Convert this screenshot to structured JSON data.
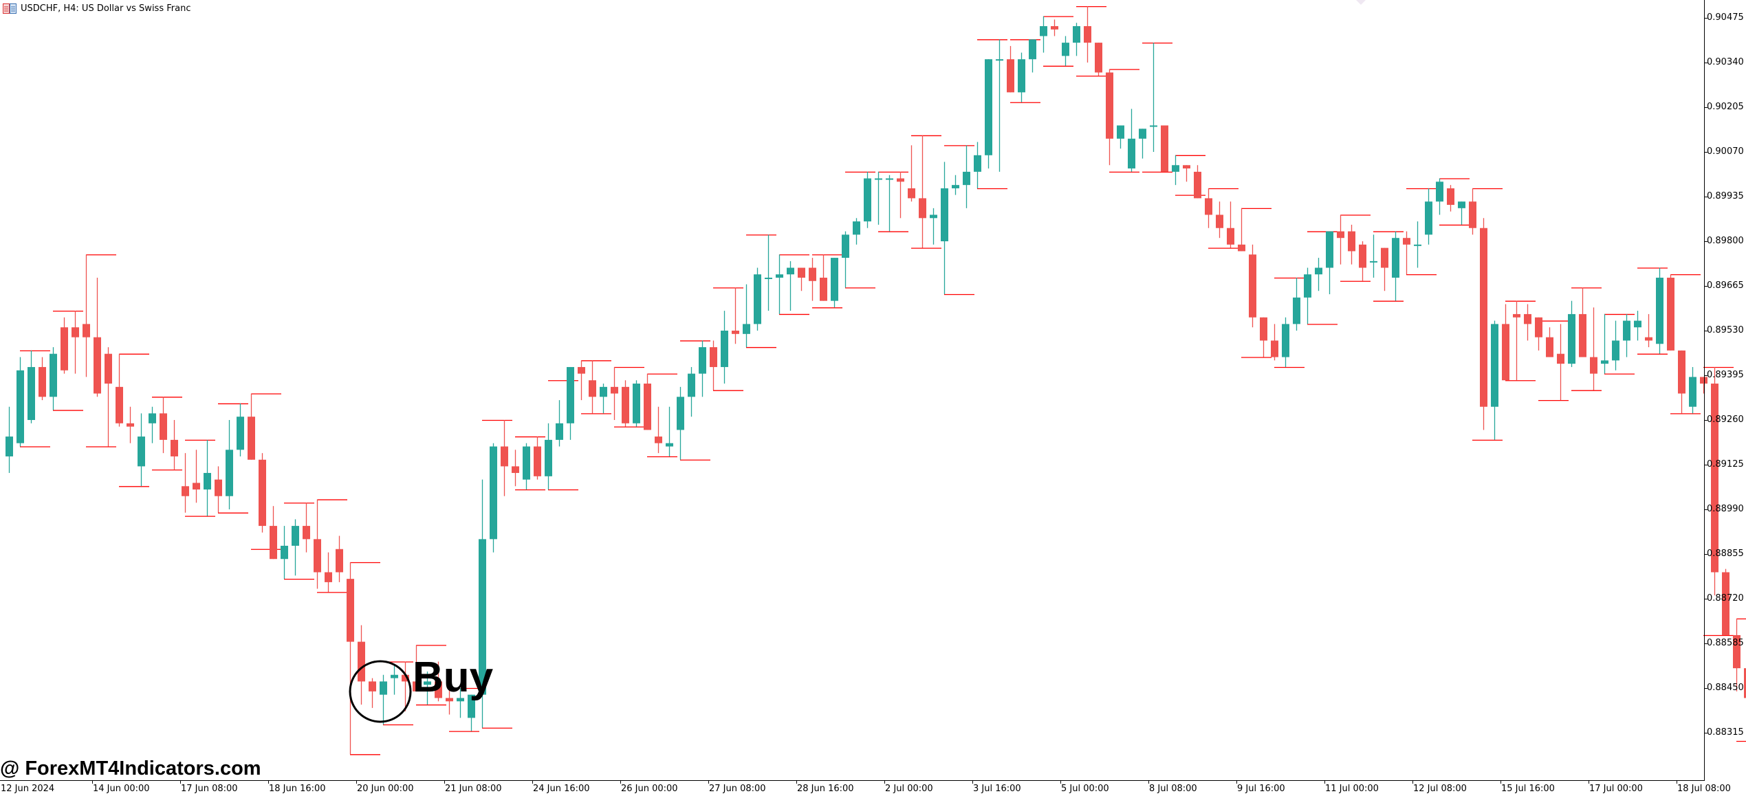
{
  "window": {
    "title": "USDCHF, H4:  US Dollar vs Swiss Franc",
    "icon": "chart-window-icon"
  },
  "annotation": {
    "label": "Buy",
    "marker": "circle"
  },
  "watermark": "@ ForexMT4Indicators.com",
  "colors": {
    "bull": "#26a69a",
    "bear": "#ef5350",
    "level_line": "#ff0000",
    "axis": "#000000",
    "background": "#ffffff"
  },
  "chart_data": {
    "type": "candlestick",
    "title": "USDCHF, H4: US Dollar vs Swiss Franc",
    "symbol": "USDCHF",
    "timeframe": "H4",
    "xlabel": "",
    "ylabel": "",
    "ylim": [
      0.8819,
      0.9053
    ],
    "grid": false,
    "y_ticks": [
      "0.90475",
      "0.90340",
      "0.90205",
      "0.90070",
      "0.89935",
      "0.89800",
      "0.89665",
      "0.89530",
      "0.89395",
      "0.89260",
      "0.89125",
      "0.88990",
      "0.88855",
      "0.88720",
      "0.88585",
      "0.88450",
      "0.88315"
    ],
    "x_ticks": [
      "12 Jun 2024",
      "14 Jun 00:00",
      "17 Jun 08:00",
      "18 Jun 16:00",
      "20 Jun 00:00",
      "21 Jun 08:00",
      "24 Jun 16:00",
      "26 Jun 00:00",
      "27 Jun 08:00",
      "28 Jun 16:00",
      "2 Jul 00:00",
      "3 Jul 16:00",
      "5 Jul 00:00",
      "8 Jul 08:00",
      "9 Jul 16:00",
      "11 Jul 00:00",
      "12 Jul 08:00",
      "15 Jul 16:00",
      "17 Jul 00:00",
      "18 Jul 08:00"
    ],
    "candles_ohlc": [
      [
        0.8915,
        0.893,
        0.891,
        0.8921
      ],
      [
        0.8919,
        0.8945,
        0.8918,
        0.8941
      ],
      [
        0.8926,
        0.8947,
        0.8925,
        0.8942
      ],
      [
        0.8942,
        0.8945,
        0.8932,
        0.8933
      ],
      [
        0.8933,
        0.8948,
        0.8929,
        0.8946
      ],
      [
        0.8954,
        0.8957,
        0.894,
        0.8941
      ],
      [
        0.8954,
        0.8959,
        0.894,
        0.8951
      ],
      [
        0.8955,
        0.8976,
        0.8939,
        0.8951
      ],
      [
        0.8951,
        0.8969,
        0.8933,
        0.8934
      ],
      [
        0.8946,
        0.8948,
        0.8918,
        0.8937
      ],
      [
        0.8936,
        0.8946,
        0.8924,
        0.8925
      ],
      [
        0.8925,
        0.893,
        0.8919,
        0.8924
      ],
      [
        0.8912,
        0.8928,
        0.8906,
        0.8921
      ],
      [
        0.8925,
        0.893,
        0.8919,
        0.8928
      ],
      [
        0.8928,
        0.8933,
        0.8916,
        0.892
      ],
      [
        0.892,
        0.8926,
        0.8911,
        0.8915
      ],
      [
        0.8906,
        0.8916,
        0.8898,
        0.8903
      ],
      [
        0.8907,
        0.8917,
        0.8901,
        0.8905
      ],
      [
        0.8905,
        0.892,
        0.8897,
        0.891
      ],
      [
        0.8908,
        0.8912,
        0.8898,
        0.8903
      ],
      [
        0.8903,
        0.8926,
        0.8899,
        0.8917
      ],
      [
        0.8917,
        0.8931,
        0.8915,
        0.8927
      ],
      [
        0.8927,
        0.8934,
        0.8917,
        0.8914
      ],
      [
        0.8914,
        0.8916,
        0.8892,
        0.8894
      ],
      [
        0.8894,
        0.89,
        0.8887,
        0.8884
      ],
      [
        0.8884,
        0.8894,
        0.8878,
        0.8888
      ],
      [
        0.8888,
        0.8896,
        0.8879,
        0.8894
      ],
      [
        0.8894,
        0.8901,
        0.8886,
        0.889
      ],
      [
        0.889,
        0.8902,
        0.8875,
        0.888
      ],
      [
        0.888,
        0.8886,
        0.8874,
        0.8877
      ],
      [
        0.8887,
        0.8891,
        0.8877,
        0.888
      ],
      [
        0.8878,
        0.8883,
        0.8825,
        0.8859
      ],
      [
        0.8859,
        0.8864,
        0.884,
        0.8847
      ],
      [
        0.8847,
        0.8848,
        0.8839,
        0.8844
      ],
      [
        0.8843,
        0.8849,
        0.8834,
        0.8847
      ],
      [
        0.8848,
        0.8852,
        0.8843,
        0.8849
      ],
      [
        0.8849,
        0.8853,
        0.8838,
        0.8847
      ],
      [
        0.8847,
        0.8858,
        0.8846,
        0.8844
      ],
      [
        0.8846,
        0.885,
        0.884,
        0.8847
      ],
      [
        0.8847,
        0.8853,
        0.8841,
        0.8842
      ],
      [
        0.8842,
        0.8845,
        0.8837,
        0.8841
      ],
      [
        0.8841,
        0.8845,
        0.8836,
        0.8842
      ],
      [
        0.8836,
        0.8841,
        0.8832,
        0.8843
      ],
      [
        0.8843,
        0.8908,
        0.8833,
        0.889
      ],
      [
        0.889,
        0.8919,
        0.8886,
        0.8918
      ],
      [
        0.8918,
        0.8926,
        0.8903,
        0.8912
      ],
      [
        0.8912,
        0.8917,
        0.8906,
        0.891
      ],
      [
        0.8908,
        0.8919,
        0.8905,
        0.8918
      ],
      [
        0.8918,
        0.8921,
        0.8908,
        0.8909
      ],
      [
        0.8909,
        0.8925,
        0.8905,
        0.892
      ],
      [
        0.892,
        0.8932,
        0.8918,
        0.8925
      ],
      [
        0.8925,
        0.8938,
        0.892,
        0.8942
      ],
      [
        0.8942,
        0.8944,
        0.8932,
        0.894
      ],
      [
        0.8938,
        0.8944,
        0.8928,
        0.8933
      ],
      [
        0.8933,
        0.8937,
        0.8928,
        0.8936
      ],
      [
        0.8936,
        0.8942,
        0.8926,
        0.8934
      ],
      [
        0.8936,
        0.8938,
        0.8924,
        0.8925
      ],
      [
        0.8925,
        0.8938,
        0.8924,
        0.8937
      ],
      [
        0.8937,
        0.894,
        0.8923,
        0.8923
      ],
      [
        0.8921,
        0.893,
        0.8916,
        0.8919
      ],
      [
        0.8918,
        0.893,
        0.8915,
        0.8919
      ],
      [
        0.8923,
        0.8936,
        0.8914,
        0.8933
      ],
      [
        0.8933,
        0.8942,
        0.8927,
        0.894
      ],
      [
        0.894,
        0.895,
        0.8933,
        0.8948
      ],
      [
        0.8948,
        0.895,
        0.8935,
        0.8942
      ],
      [
        0.8942,
        0.8959,
        0.8937,
        0.8953
      ],
      [
        0.8953,
        0.8966,
        0.8949,
        0.8952
      ],
      [
        0.8952,
        0.8967,
        0.8948,
        0.8955
      ],
      [
        0.8955,
        0.8972,
        0.8953,
        0.897
      ],
      [
        0.8969,
        0.8982,
        0.8959,
        0.8969
      ],
      [
        0.8969,
        0.8976,
        0.8958,
        0.897
      ],
      [
        0.897,
        0.8974,
        0.8959,
        0.8972
      ],
      [
        0.8972,
        0.8972,
        0.8965,
        0.8969
      ],
      [
        0.8972,
        0.8975,
        0.8962,
        0.8968
      ],
      [
        0.8969,
        0.8976,
        0.8962,
        0.8962
      ],
      [
        0.8962,
        0.8975,
        0.896,
        0.8975
      ],
      [
        0.8975,
        0.8983,
        0.8966,
        0.8982
      ],
      [
        0.8982,
        0.8987,
        0.8979,
        0.8986
      ],
      [
        0.8986,
        0.9001,
        0.8984,
        0.8999
      ],
      [
        0.8999,
        0.9001,
        0.8985,
        0.8999
      ],
      [
        0.8999,
        0.9,
        0.8983,
        0.8999
      ],
      [
        0.8999,
        0.9001,
        0.8987,
        0.8998
      ],
      [
        0.8996,
        0.9009,
        0.8992,
        0.8993
      ],
      [
        0.8993,
        0.9012,
        0.8978,
        0.8987
      ],
      [
        0.8987,
        0.899,
        0.8979,
        0.8988
      ],
      [
        0.898,
        0.9004,
        0.8964,
        0.8996
      ],
      [
        0.8996,
        0.9,
        0.8994,
        0.8997
      ],
      [
        0.8997,
        0.9009,
        0.899,
        0.9001
      ],
      [
        0.9001,
        0.901,
        0.8996,
        0.9006
      ],
      [
        0.9006,
        0.9023,
        0.9002,
        0.9035
      ],
      [
        0.9035,
        0.9041,
        0.9001,
        0.9035
      ],
      [
        0.9035,
        0.9039,
        0.9025,
        0.9025
      ],
      [
        0.9025,
        0.9037,
        0.9022,
        0.9035
      ],
      [
        0.9035,
        0.9041,
        0.9031,
        0.9041
      ],
      [
        0.9042,
        0.9048,
        0.9037,
        0.9045
      ],
      [
        0.9045,
        0.9047,
        0.9042,
        0.9044
      ],
      [
        0.9036,
        0.9042,
        0.9033,
        0.904
      ],
      [
        0.904,
        0.9046,
        0.9036,
        0.9045
      ],
      [
        0.9045,
        0.9051,
        0.9034,
        0.904
      ],
      [
        0.904,
        0.9039,
        0.903,
        0.9031
      ],
      [
        0.9031,
        0.9032,
        0.9003,
        0.9011
      ],
      [
        0.9011,
        0.9015,
        0.9008,
        0.9015
      ],
      [
        0.9002,
        0.902,
        0.9001,
        0.9011
      ],
      [
        0.9011,
        0.9013,
        0.9005,
        0.9014
      ],
      [
        0.9015,
        0.904,
        0.9007,
        0.9015
      ],
      [
        0.9015,
        0.9015,
        0.9001,
        0.9001
      ],
      [
        0.9001,
        0.9006,
        0.8997,
        0.9003
      ],
      [
        0.9003,
        0.9002,
        0.8998,
        0.9002
      ],
      [
        0.9001,
        0.9003,
        0.8994,
        0.8993
      ],
      [
        0.8993,
        0.8996,
        0.8984,
        0.8988
      ],
      [
        0.8988,
        0.8992,
        0.8981,
        0.8984
      ],
      [
        0.8984,
        0.8992,
        0.8978,
        0.8979
      ],
      [
        0.8979,
        0.899,
        0.8978,
        0.8977
      ],
      [
        0.8976,
        0.8979,
        0.8954,
        0.8957
      ],
      [
        0.8957,
        0.8957,
        0.8945,
        0.895
      ],
      [
        0.895,
        0.8955,
        0.8944,
        0.8945
      ],
      [
        0.8945,
        0.8957,
        0.8942,
        0.8955
      ],
      [
        0.8955,
        0.8969,
        0.8953,
        0.8963
      ],
      [
        0.8963,
        0.8972,
        0.8955,
        0.897
      ],
      [
        0.897,
        0.8975,
        0.8965,
        0.8972
      ],
      [
        0.8972,
        0.8983,
        0.8964,
        0.8983
      ],
      [
        0.8983,
        0.8988,
        0.8973,
        0.8981
      ],
      [
        0.8983,
        0.8985,
        0.8973,
        0.8977
      ],
      [
        0.8979,
        0.898,
        0.8968,
        0.8972
      ],
      [
        0.8974,
        0.8982,
        0.8969,
        0.8974
      ],
      [
        0.8978,
        0.8977,
        0.8965,
        0.8972
      ],
      [
        0.8969,
        0.8983,
        0.8962,
        0.8981
      ],
      [
        0.8981,
        0.8983,
        0.897,
        0.8979
      ],
      [
        0.8979,
        0.8986,
        0.8972,
        0.8979
      ],
      [
        0.8982,
        0.8996,
        0.8979,
        0.8992
      ],
      [
        0.8992,
        0.8999,
        0.8988,
        0.8998
      ],
      [
        0.8996,
        0.8997,
        0.8989,
        0.8991
      ],
      [
        0.899,
        0.8992,
        0.8985,
        0.8992
      ],
      [
        0.8992,
        0.8996,
        0.8982,
        0.8984
      ],
      [
        0.8984,
        0.8987,
        0.8923,
        0.893
      ],
      [
        0.893,
        0.8956,
        0.892,
        0.8955
      ],
      [
        0.8955,
        0.8961,
        0.8938,
        0.8938
      ],
      [
        0.8958,
        0.8962,
        0.8938,
        0.8957
      ],
      [
        0.8958,
        0.8961,
        0.895,
        0.8955
      ],
      [
        0.8957,
        0.8956,
        0.8947,
        0.8951
      ],
      [
        0.8951,
        0.8954,
        0.8945,
        0.8945
      ],
      [
        0.8946,
        0.8955,
        0.8932,
        0.8943
      ],
      [
        0.8943,
        0.8962,
        0.8942,
        0.8958
      ],
      [
        0.8958,
        0.8966,
        0.895,
        0.8945
      ],
      [
        0.8945,
        0.896,
        0.8935,
        0.894
      ],
      [
        0.8943,
        0.8958,
        0.894,
        0.8944
      ],
      [
        0.8944,
        0.8956,
        0.8941,
        0.895
      ],
      [
        0.895,
        0.8958,
        0.8945,
        0.8956
      ],
      [
        0.8954,
        0.8959,
        0.895,
        0.8956
      ],
      [
        0.8951,
        0.8958,
        0.8948,
        0.895
      ],
      [
        0.8949,
        0.8972,
        0.8946,
        0.8969
      ],
      [
        0.8969,
        0.897,
        0.8947,
        0.8947
      ],
      [
        0.8947,
        0.8947,
        0.8928,
        0.8934
      ],
      [
        0.893,
        0.8942,
        0.8928,
        0.8939
      ],
      [
        0.8939,
        0.8939,
        0.8934,
        0.8937
      ],
      [
        0.8937,
        0.8942,
        0.8873,
        0.888
      ],
      [
        0.888,
        0.8881,
        0.8861,
        0.8861
      ],
      [
        0.8861,
        0.8866,
        0.8844,
        0.8851
      ],
      [
        0.8851,
        0.8854,
        0.884,
        0.8842
      ],
      [
        0.884,
        0.8844,
        0.8829,
        0.8832
      ],
      [
        0.8833,
        0.8837,
        0.8823,
        0.8836
      ],
      [
        0.8838,
        0.8847,
        0.8835,
        0.8846
      ],
      [
        0.8846,
        0.8848,
        0.8833,
        0.8841
      ],
      [
        0.8842,
        0.8844,
        0.8834,
        0.8836
      ],
      [
        0.8836,
        0.8862,
        0.8834,
        0.886
      ],
      [
        0.886,
        0.8878,
        0.8859,
        0.8879
      ]
    ],
    "levels": [
      {
        "i": 0,
        "len": 3,
        "price": 0.8964
      },
      {
        "i": 0,
        "len": 3,
        "price": 0.8954
      }
    ],
    "annotations": [
      {
        "text": "Buy",
        "type": "circle",
        "candle_index": 43
      }
    ]
  }
}
